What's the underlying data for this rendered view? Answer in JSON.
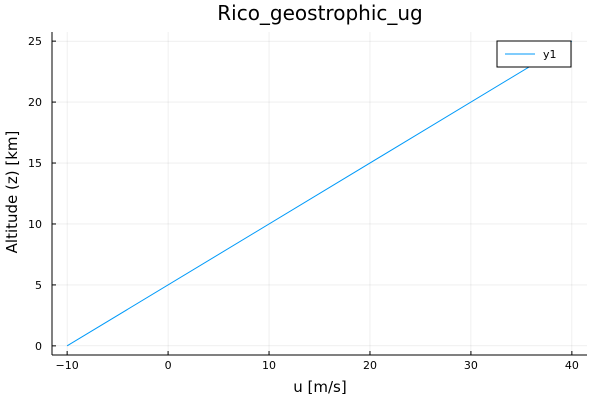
{
  "chart_data": {
    "type": "line",
    "title": "Rico_geostrophic_ug",
    "xlabel": "u [m/s]",
    "ylabel": "Altitude (z) [km]",
    "xlim": [
      -11.5,
      41.5
    ],
    "ylim": [
      -0.75,
      25.75
    ],
    "xticks": [
      -10,
      0,
      10,
      20,
      30,
      40
    ],
    "yticks": [
      0,
      5,
      10,
      15,
      20,
      25
    ],
    "grid": true,
    "legend_position": "top-right",
    "series": [
      {
        "name": "y1",
        "color": "#009af9",
        "x": [
          -10,
          40
        ],
        "y": [
          0,
          25
        ]
      }
    ]
  }
}
